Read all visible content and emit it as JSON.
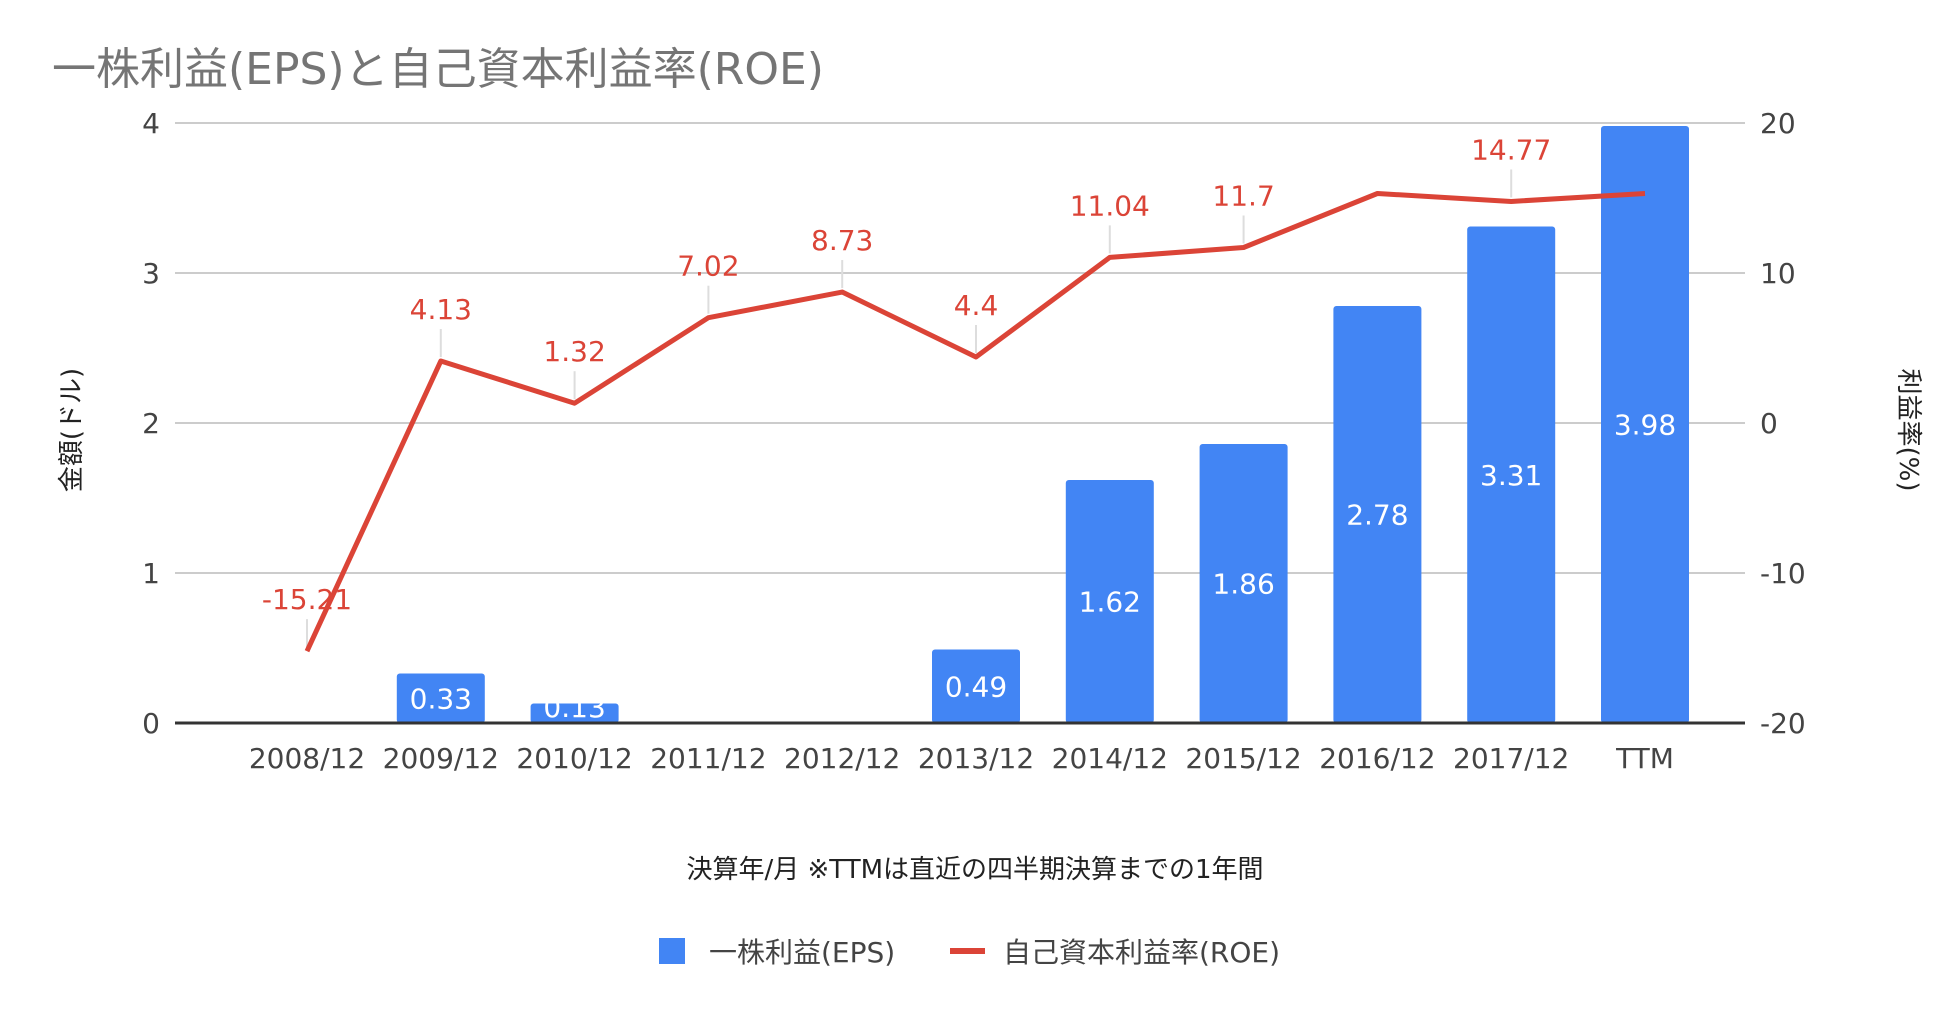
{
  "chart_data": {
    "type": "bar+line",
    "title": "一株利益(EPS)と自己資本利益率(ROE)",
    "xlabel": "決算年/月 ※TTMは直近の四半期決算までの1年間",
    "ylabel_left": "金額(ドル)",
    "ylabel_right": "利益率(%)",
    "ylim_left": [
      0,
      4
    ],
    "ylim_right": [
      -20,
      20
    ],
    "yticks_left": [
      "0",
      "1",
      "2",
      "3",
      "4"
    ],
    "yticks_right": [
      "-20",
      "-10",
      "0",
      "10",
      "20"
    ],
    "categories": [
      "2008/12",
      "2009/12",
      "2010/12",
      "2011/12",
      "2012/12",
      "2013/12",
      "2014/12",
      "2015/12",
      "2016/12",
      "2017/12",
      "TTM"
    ],
    "series": [
      {
        "name": "一株利益(EPS)",
        "type": "bar",
        "axis": "left",
        "color": "#4285f4",
        "values": [
          0,
          0.33,
          0.13,
          0,
          0,
          0.49,
          1.62,
          1.86,
          2.78,
          3.31,
          3.98
        ],
        "labels": [
          "",
          "0.33",
          "0.13",
          "",
          "",
          "0.49",
          "1.62",
          "1.86",
          "2.78",
          "3.31",
          "3.98"
        ]
      },
      {
        "name": "自己資本利益率(ROE)",
        "type": "line",
        "axis": "right",
        "color": "#db4437",
        "values": [
          -15.21,
          4.13,
          1.32,
          7.02,
          8.73,
          4.4,
          11.04,
          11.7,
          15.3,
          14.77,
          15.3
        ],
        "labels": [
          "-15.21",
          "4.13",
          "1.32",
          "7.02",
          "8.73",
          "4.4",
          "11.04",
          "11.7",
          "",
          "14.77",
          ""
        ]
      }
    ],
    "legend": {
      "position": "bottom",
      "items": [
        "一株利益(EPS)",
        "自己資本利益率(ROE)"
      ]
    }
  }
}
